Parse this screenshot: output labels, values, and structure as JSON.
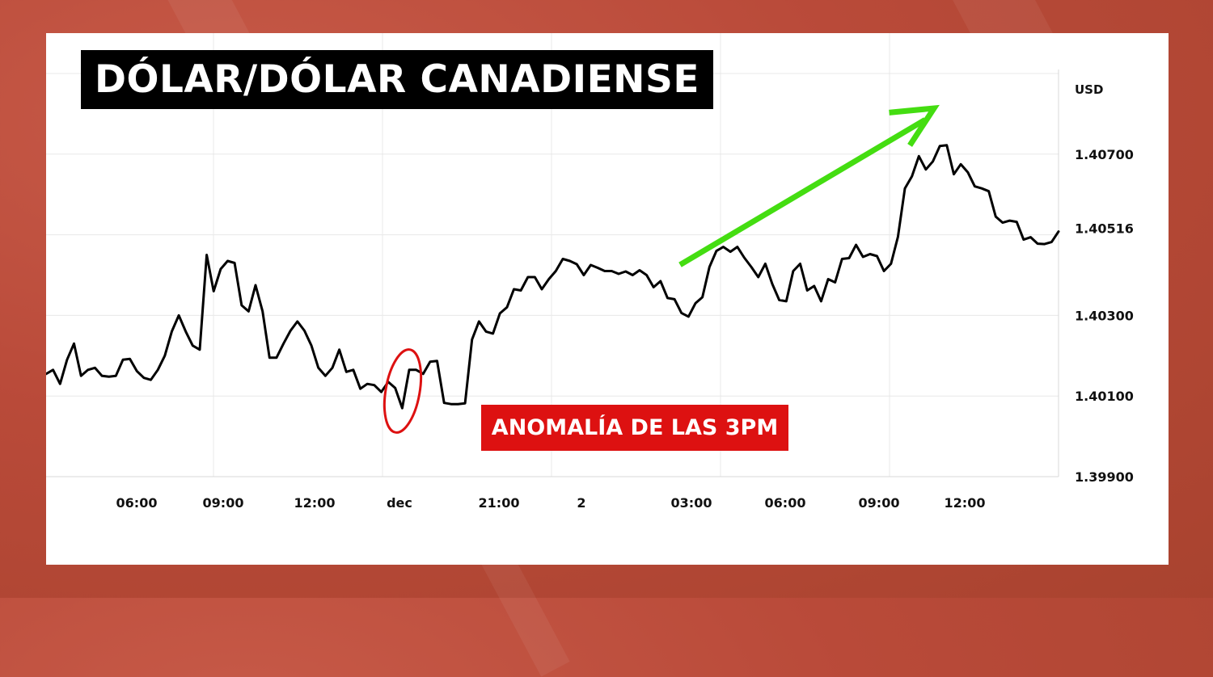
{
  "title": "DÓLAR/DÓLAR CANADIENSE",
  "annotation": "ANOMALÍA DE LAS 3PM",
  "colors": {
    "background": "#b94a39",
    "line": "#000000",
    "arrow": "#44dd11",
    "highlight": "#dd1111",
    "grid": "#e6e6e6",
    "title_bg": "#000000"
  },
  "chart_data": {
    "type": "line",
    "unit_label": "USD",
    "y_ticks": [
      "1.40700",
      "1.40516",
      "1.40300",
      "1.40100",
      "1.39900"
    ],
    "x_ticks": [
      "06:00",
      "09:00",
      "12:00",
      "dec",
      "21:00",
      "2",
      "03:00",
      "06:00",
      "09:00",
      "12:00"
    ],
    "ylim": [
      1.399,
      1.4091
    ],
    "grid": true,
    "series": [
      {
        "values": [
          1.40155,
          1.40165,
          1.4013,
          1.4019,
          1.4023,
          1.4015,
          1.40165,
          1.4017,
          1.4015,
          1.40148,
          1.4015,
          1.4019,
          1.40192,
          1.40162,
          1.40145,
          1.4014,
          1.40165,
          1.402,
          1.4026,
          1.403,
          1.4026,
          1.40225,
          1.40215,
          1.4045,
          1.4036,
          1.40415,
          1.40435,
          1.4043,
          1.40325,
          1.4031,
          1.40375,
          1.4031,
          1.40195,
          1.40195,
          1.4023,
          1.40262,
          1.40285,
          1.40262,
          1.40225,
          1.4017,
          1.4015,
          1.4017,
          1.40215,
          1.4016,
          1.40165,
          1.40118,
          1.4013,
          1.40127,
          1.4011,
          1.40135,
          1.4012,
          1.4007,
          1.40165,
          1.40165,
          1.40155,
          1.40185,
          1.40187,
          1.40083,
          1.4008,
          1.4008,
          1.40082,
          1.4024,
          1.40285,
          1.4026,
          1.40255,
          1.40305,
          1.4032,
          1.40365,
          1.40362,
          1.40395,
          1.40395,
          1.40365,
          1.4039,
          1.4041,
          1.4044,
          1.40435,
          1.40427,
          1.404,
          1.40425,
          1.40418,
          1.4041,
          1.4041,
          1.40403,
          1.40409,
          1.404,
          1.40412,
          1.404,
          1.4037,
          1.40385,
          1.40343,
          1.4034,
          1.40306,
          1.40297,
          1.4033,
          1.40345,
          1.4042,
          1.4046,
          1.4047,
          1.40458,
          1.4047,
          1.40443,
          1.4042,
          1.40395,
          1.40428,
          1.40378,
          1.40338,
          1.40335,
          1.4041,
          1.40428,
          1.40362,
          1.40373,
          1.40335,
          1.4039,
          1.40382,
          1.4044,
          1.40442,
          1.40475,
          1.40445,
          1.40452,
          1.40447,
          1.4041,
          1.40428,
          1.40495,
          1.40615,
          1.40645,
          1.40695,
          1.40662,
          1.40682,
          1.4072,
          1.40722,
          1.4065,
          1.40675,
          1.40655,
          1.4062,
          1.40615,
          1.40608,
          1.40545,
          1.4053,
          1.40535,
          1.40532,
          1.40488,
          1.40494,
          1.40478,
          1.40477,
          1.40482,
          1.40508
        ]
      }
    ]
  }
}
